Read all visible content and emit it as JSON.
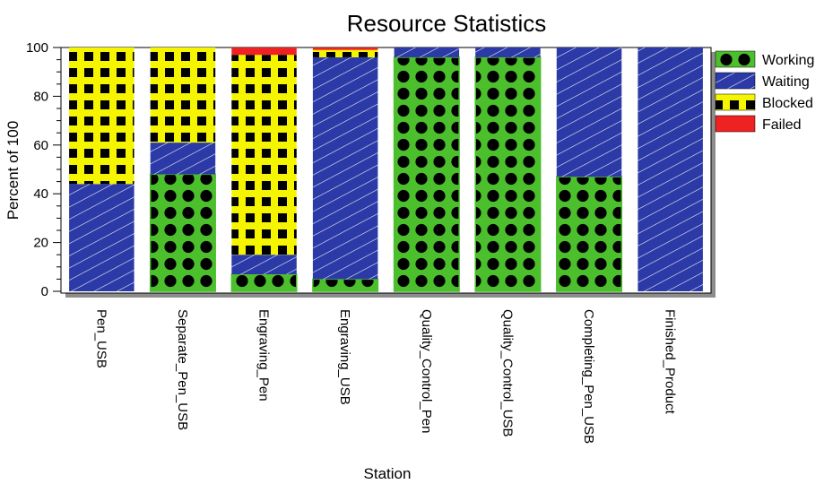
{
  "chart_data": {
    "type": "bar",
    "stacked": true,
    "title": "Resource Statistics",
    "xlabel": "Station",
    "ylabel": "Percent of 100",
    "ylim": [
      0,
      100
    ],
    "yticks": [
      "0",
      "20",
      "40",
      "60",
      "80",
      "100"
    ],
    "grid": false,
    "legend_position": "top-right",
    "categories": [
      "Pen_USB",
      "Separate_Pen_USB",
      "Engraving_Pen",
      "Engraving_USB",
      "Quality_Control_Pen",
      "Quality_Control_USB",
      "Completing_Pen_USB",
      "Finished_Product"
    ],
    "series": [
      {
        "name": "Working",
        "color": "#4cc02c",
        "pattern": "black-dots",
        "values": [
          0,
          48,
          7,
          5,
          96,
          96,
          47,
          0
        ]
      },
      {
        "name": "Waiting",
        "color": "#2b3aa6",
        "pattern": "white-diagonal-lines",
        "values": [
          44,
          13,
          8,
          91,
          4,
          4,
          53,
          100
        ]
      },
      {
        "name": "Blocked",
        "color": "#f5f500",
        "pattern": "black-squares",
        "values": [
          56,
          39,
          82,
          3,
          0,
          0,
          0,
          0
        ]
      },
      {
        "name": "Failed",
        "color": "#ee2222",
        "pattern": "solid",
        "values": [
          0,
          0,
          3,
          1,
          0,
          0,
          0,
          0
        ]
      }
    ]
  }
}
